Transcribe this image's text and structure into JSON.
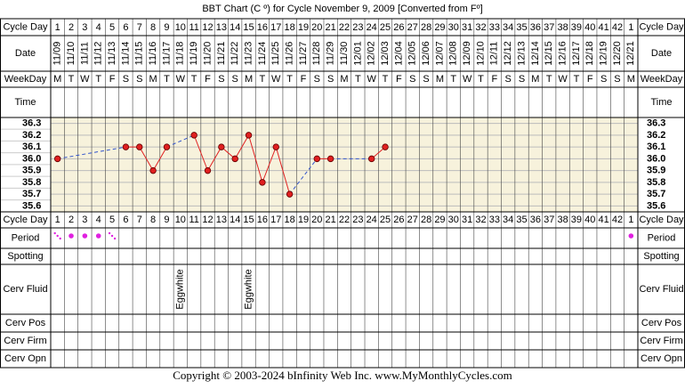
{
  "title": "BBT Chart (C º) for Cycle November 9, 2009  [Converted from Fº]",
  "footer": "Copyright © 2003-2024 bInfinity Web Inc.     www.MyMonthlyCycles.com",
  "row_labels": {
    "cycle_day": "Cycle Day",
    "date": "Date",
    "weekday": "WeekDay",
    "time": "Time",
    "period": "Period",
    "spotting": "Spotting",
    "cerv_fluid": "Cerv Fluid",
    "cerv_pos": "Cerv Pos",
    "cerv_firm": "Cerv Firm",
    "cerv_opn": "Cerv Opn"
  },
  "chart_data": {
    "type": "line",
    "cycle_days": [
      1,
      2,
      3,
      4,
      5,
      6,
      7,
      8,
      9,
      10,
      11,
      12,
      13,
      14,
      15,
      16,
      17,
      18,
      19,
      20,
      21,
      22,
      23,
      24,
      25,
      26,
      27,
      28,
      29,
      30,
      31,
      32,
      33,
      34,
      35,
      36,
      37,
      38,
      39,
      40,
      41,
      42,
      1
    ],
    "x": [
      "11/09",
      "11/10",
      "11/11",
      "11/12",
      "11/13",
      "11/14",
      "11/15",
      "11/16",
      "11/17",
      "11/18",
      "11/19",
      "11/20",
      "11/21",
      "11/22",
      "11/23",
      "11/24",
      "11/25",
      "11/26",
      "11/27",
      "11/28",
      "11/29",
      "11/30",
      "12/01",
      "12/02",
      "12/03",
      "12/04",
      "12/05",
      "12/06",
      "12/07",
      "12/08",
      "12/09",
      "12/10",
      "12/11",
      "12/12",
      "12/13",
      "12/14",
      "12/15",
      "12/16",
      "12/17",
      "12/18",
      "12/19",
      "12/20",
      "12/21"
    ],
    "weekdays": [
      "M",
      "T",
      "W",
      "T",
      "F",
      "S",
      "S",
      "M",
      "T",
      "W",
      "T",
      "F",
      "S",
      "S",
      "M",
      "T",
      "W",
      "T",
      "F",
      "S",
      "S",
      "M",
      "T",
      "W",
      "T",
      "F",
      "S",
      "S",
      "M",
      "T",
      "W",
      "T",
      "F",
      "S",
      "S",
      "M",
      "T",
      "W",
      "T",
      "F",
      "S",
      "S",
      "M"
    ],
    "series": [
      {
        "color": "#e02020",
        "values": [
          36.0,
          null,
          null,
          null,
          null,
          36.1,
          36.1,
          35.9,
          36.1,
          null,
          36.2,
          35.9,
          36.1,
          36.0,
          36.2,
          35.8,
          36.1,
          35.7,
          null,
          36.0,
          36.0,
          null,
          null,
          36.0,
          36.1,
          null,
          null,
          null,
          null,
          null,
          null,
          null,
          null,
          null,
          null,
          null,
          null,
          null,
          null,
          null,
          null,
          null,
          null
        ]
      }
    ],
    "gap_color": "#3355cc",
    "ylim": [
      35.55,
      36.35
    ],
    "yticks": [
      36.3,
      36.2,
      36.1,
      {
        "value": 36,
        "label": "36.0"
      },
      35.9,
      35.8,
      35.7,
      35.6
    ],
    "grid": true,
    "period": [
      "dots",
      "dot",
      "dot",
      "dot",
      "dots",
      null,
      null,
      null,
      null,
      null,
      null,
      null,
      null,
      null,
      null,
      null,
      null,
      null,
      null,
      null,
      null,
      null,
      null,
      null,
      null,
      null,
      null,
      null,
      null,
      null,
      null,
      null,
      null,
      null,
      null,
      null,
      null,
      null,
      null,
      null,
      null,
      null,
      "dot"
    ],
    "period_color": "#e020e0",
    "cerv_fluid": [
      null,
      null,
      null,
      null,
      null,
      null,
      null,
      null,
      null,
      "Eggwhite",
      null,
      null,
      null,
      null,
      "Eggwhite",
      null,
      null,
      null,
      null,
      null,
      null,
      null,
      null,
      null,
      null,
      null,
      null,
      null,
      null,
      null,
      null,
      null,
      null,
      null,
      null,
      null,
      null,
      null,
      null,
      null,
      null,
      null,
      null
    ]
  }
}
